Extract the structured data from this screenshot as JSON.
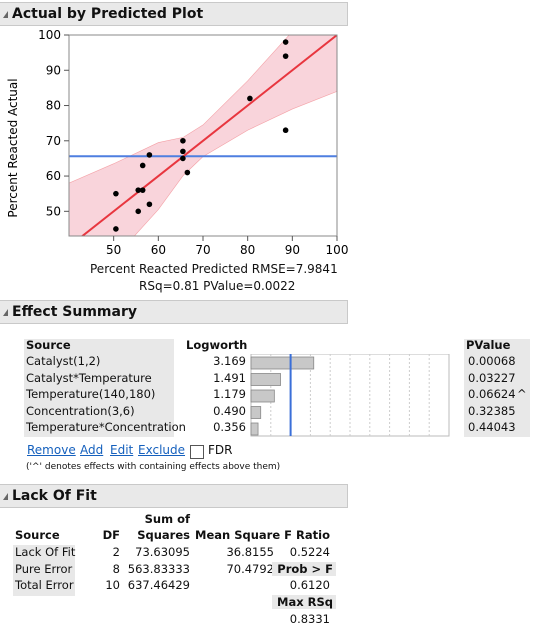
{
  "actual_by_predicted": {
    "title": "Actual by Predicted Plot",
    "rmse_label": "Percent Reacted Predicted RMSE=7.9841",
    "rsq_label": "RSq=0.81 PValue=0.0022"
  },
  "chart_data": {
    "type": "scatter",
    "title": "Actual by Predicted Plot",
    "xlabel": "Percent Reacted Predicted RMSE=7.9841",
    "ylabel": "Percent Reacted Actual",
    "xlim": [
      40,
      100
    ],
    "ylim": [
      43,
      100
    ],
    "x_ticks": [
      50,
      60,
      70,
      80,
      90,
      100
    ],
    "y_ticks": [
      50,
      60,
      70,
      80,
      90,
      100
    ],
    "points": [
      {
        "x": 50.5,
        "y": 55
      },
      {
        "x": 50.5,
        "y": 45
      },
      {
        "x": 55.5,
        "y": 56
      },
      {
        "x": 56.5,
        "y": 56
      },
      {
        "x": 56.5,
        "y": 63
      },
      {
        "x": 55.5,
        "y": 50
      },
      {
        "x": 58.0,
        "y": 52
      },
      {
        "x": 58.0,
        "y": 66
      },
      {
        "x": 65.5,
        "y": 70
      },
      {
        "x": 65.5,
        "y": 67
      },
      {
        "x": 65.5,
        "y": 65
      },
      {
        "x": 66.5,
        "y": 61
      },
      {
        "x": 80.5,
        "y": 82
      },
      {
        "x": 88.5,
        "y": 98
      },
      {
        "x": 88.5,
        "y": 94
      },
      {
        "x": 88.5,
        "y": 73
      }
    ],
    "fit_line": {
      "x": [
        40,
        100
      ],
      "y": [
        40,
        100
      ]
    },
    "mean_line": 65.6,
    "confidence_band": {
      "x": [
        40,
        50,
        60,
        65.6,
        70,
        80,
        90,
        100
      ],
      "upper": [
        58,
        63.5,
        69.5,
        71,
        74.5,
        87,
        101,
        116
      ],
      "lower": [
        22,
        36.5,
        50.5,
        60.2,
        65.5,
        73,
        79,
        84
      ]
    },
    "colors": {
      "fit": "#e8363f",
      "band": "#f9d4db",
      "mean": "#4f7fe0",
      "points": "#000000"
    }
  },
  "effect_summary": {
    "title": "Effect Summary",
    "headers": {
      "source": "Source",
      "logworth": "Logworth",
      "pvalue": "PValue"
    },
    "rows": [
      {
        "source": "Catalyst(1,2)",
        "logworth": "3.169",
        "logworth_value": 3.169,
        "pvalue": "0.00068",
        "flag": ""
      },
      {
        "source": "Catalyst*Temperature",
        "logworth": "1.491",
        "logworth_value": 1.491,
        "pvalue": "0.03227",
        "flag": ""
      },
      {
        "source": "Temperature(140,180)",
        "logworth": "1.179",
        "logworth_value": 1.179,
        "pvalue": "0.06624",
        "flag": "^"
      },
      {
        "source": "Concentration(3,6)",
        "logworth": "0.490",
        "logworth_value": 0.49,
        "pvalue": "0.32385",
        "flag": ""
      },
      {
        "source": "Temperature*Concentration",
        "logworth": "0.356",
        "logworth_value": 0.356,
        "pvalue": "0.44043",
        "flag": ""
      }
    ],
    "bar_scale_max": 10,
    "reference_logworth": 2,
    "buttons": {
      "remove": "Remove",
      "add": "Add",
      "edit": "Edit",
      "exclude": "Exclude",
      "fdr": "FDR"
    },
    "fdr_checked": false,
    "footnote": "('^' denotes effects with containing effects above them)"
  },
  "lack_of_fit": {
    "title": "Lack Of Fit",
    "headers": {
      "source": "Source",
      "df": "DF",
      "ss_top": "Sum of",
      "ss_bottom": "Squares",
      "ms": "Mean Square",
      "f": "F Ratio"
    },
    "rows": [
      {
        "source": "Lack Of Fit",
        "df": "2",
        "ss": "73.63095",
        "ms": "36.8155",
        "f": "0.5224"
      },
      {
        "source": "Pure Error",
        "df": "8",
        "ss": "563.83333",
        "ms": "70.4792",
        "f": "Prob > F"
      },
      {
        "source": "Total Error",
        "df": "10",
        "ss": "637.46429",
        "ms": "",
        "f": "0.6120"
      }
    ],
    "max_rsq_label": "Max RSq",
    "max_rsq_value": "0.8331"
  }
}
